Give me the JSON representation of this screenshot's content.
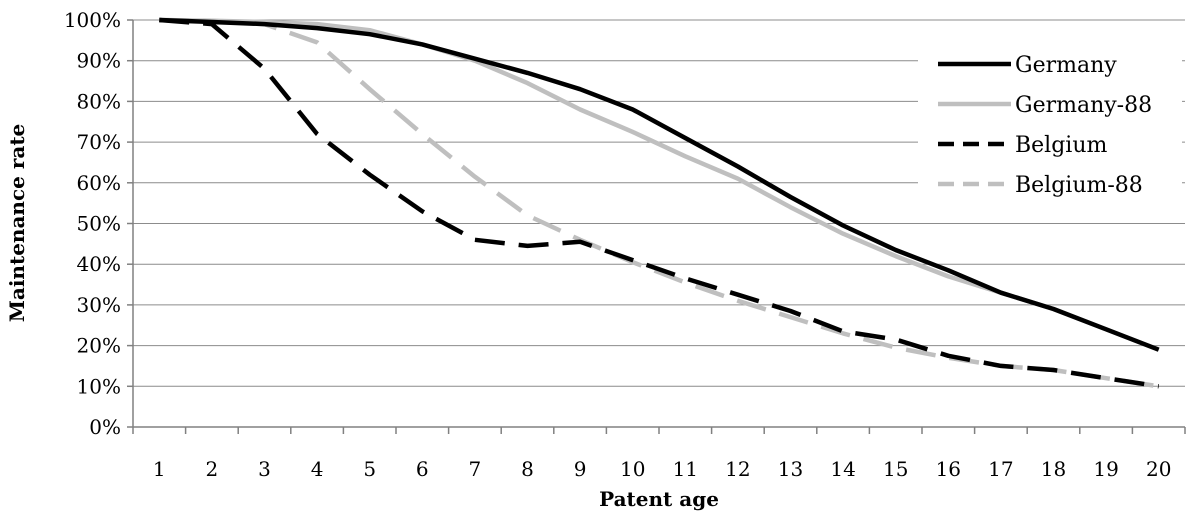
{
  "chart_data": {
    "type": "line",
    "title": "",
    "xlabel": "Patent age",
    "ylabel": "Maintenance rate",
    "categories": [
      "1",
      "2",
      "3",
      "4",
      "5",
      "6",
      "7",
      "8",
      "9",
      "10",
      "11",
      "12",
      "13",
      "14",
      "15",
      "16",
      "17",
      "18",
      "19",
      "20"
    ],
    "yticks": [
      "0%",
      "10%",
      "20%",
      "30%",
      "40%",
      "50%",
      "60%",
      "70%",
      "80%",
      "90%",
      "100%"
    ],
    "ylim": [
      0,
      100
    ],
    "grid": "horizontal",
    "legend_position": "right",
    "series": [
      {
        "name": "Germany",
        "color": "#000000",
        "dash": "solid",
        "values": [
          100,
          99.5,
          99,
          98,
          96.5,
          94,
          90.5,
          87,
          83,
          78,
          71,
          64,
          56.5,
          49.5,
          43.5,
          38.5,
          33,
          29,
          24,
          19
        ]
      },
      {
        "name": "Germany-88",
        "color": "#bfbfbf",
        "dash": "solid",
        "values": [
          100,
          99.8,
          99.5,
          99,
          97.5,
          94,
          90,
          84.5,
          78,
          72.5,
          66.5,
          61,
          54,
          47.5,
          42,
          37,
          33,
          29,
          24,
          19
        ]
      },
      {
        "name": "Belgium",
        "color": "#000000",
        "dash": "dashed",
        "values": [
          100,
          99,
          88,
          72,
          62,
          53,
          46,
          44.5,
          45.5,
          41,
          36.5,
          32.5,
          28.5,
          23.5,
          21.5,
          17.5,
          15,
          14,
          12,
          10
        ]
      },
      {
        "name": "Belgium-88",
        "color": "#bfbfbf",
        "dash": "dashed",
        "values": [
          100,
          99.8,
          99,
          94.5,
          83,
          72,
          61.5,
          52,
          46,
          40.5,
          35.5,
          31,
          27,
          23,
          19.5,
          17,
          15,
          14,
          12,
          10
        ]
      }
    ]
  }
}
